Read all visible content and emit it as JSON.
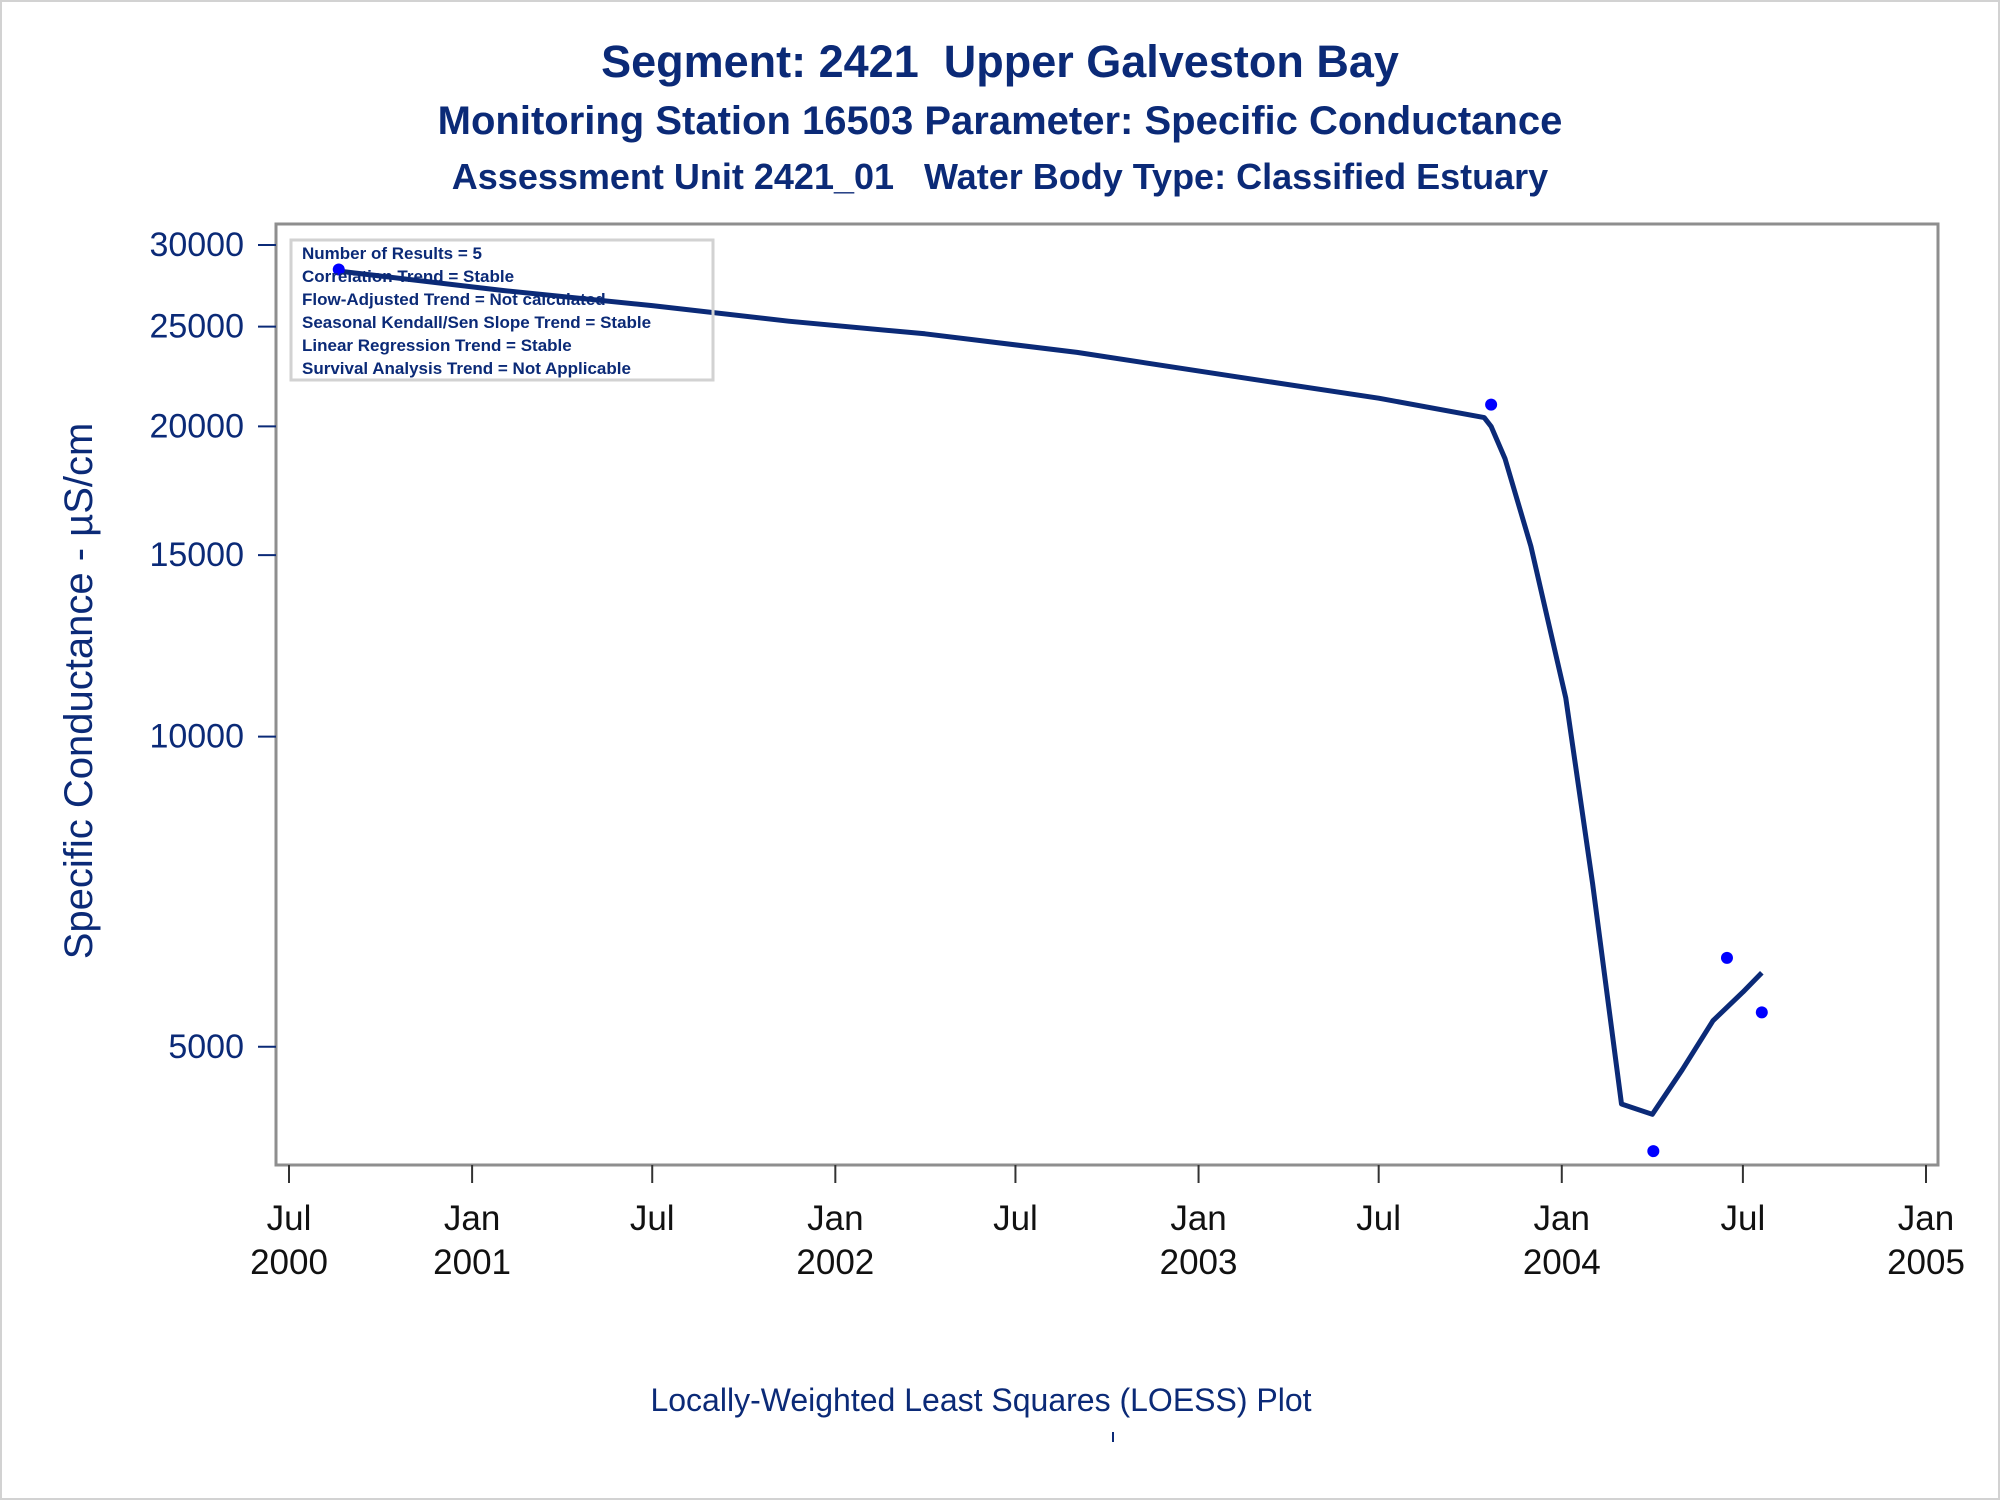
{
  "titles": {
    "line1": "Segment: 2421  Upper Galveston Bay",
    "line2": "Monitoring Station 16503 Parameter: Specific Conductance",
    "line3": "Assessment Unit 2421_01   Water Body Type: Classified Estuary"
  },
  "footnote": "Locally-Weighted Least Squares (LOESS) Plot",
  "stats_box": [
    "Number of Results = 5",
    "Correlation Trend = Stable",
    "Flow-Adjusted Trend = Not calculated",
    "Seasonal Kendall/Sen Slope Trend = Stable",
    "Linear Regression Trend = Stable",
    "Survival Analysis Trend = Not Applicable"
  ],
  "chart_data": {
    "type": "scatter",
    "ylabel": "Specific Conductance -  µS/cm",
    "y_scale": "log",
    "ylim": [
      3900,
      30200
    ],
    "yticks": [
      5000,
      10000,
      15000,
      20000,
      25000,
      30000
    ],
    "xlim": [
      "2000-06-15",
      "2005-01-15"
    ],
    "xticks": [
      {
        "date": "2000-07-01",
        "label": [
          "Jul",
          "2000"
        ]
      },
      {
        "date": "2001-01-01",
        "label": [
          "Jan",
          "2001"
        ]
      },
      {
        "date": "2001-07-01",
        "label": [
          "Jul",
          ""
        ]
      },
      {
        "date": "2002-01-01",
        "label": [
          "Jan",
          "2002"
        ]
      },
      {
        "date": "2002-07-01",
        "label": [
          "Jul",
          ""
        ]
      },
      {
        "date": "2003-01-01",
        "label": [
          "Jan",
          "2003"
        ]
      },
      {
        "date": "2003-07-01",
        "label": [
          "Jul",
          ""
        ]
      },
      {
        "date": "2004-01-01",
        "label": [
          "Jan",
          "2004"
        ]
      },
      {
        "date": "2004-07-01",
        "label": [
          "Jul",
          ""
        ]
      },
      {
        "date": "2005-01-01",
        "label": [
          "Jan",
          "2005"
        ]
      }
    ],
    "series": [
      {
        "kind": "points",
        "points": [
          {
            "x": "2000-08-20",
            "y": 28400
          },
          {
            "x": "2003-10-22",
            "y": 21000
          },
          {
            "x": "2004-04-02",
            "y": 3960
          },
          {
            "x": "2004-06-15",
            "y": 6100
          },
          {
            "x": "2004-07-20",
            "y": 5400
          }
        ]
      },
      {
        "kind": "loess",
        "points": [
          {
            "x": "2000-08-20",
            "y": 28300
          },
          {
            "x": "2001-02-01",
            "y": 27100
          },
          {
            "x": "2001-07-01",
            "y": 26200
          },
          {
            "x": "2001-11-15",
            "y": 25300
          },
          {
            "x": "2002-04-01",
            "y": 24600
          },
          {
            "x": "2002-09-01",
            "y": 23600
          },
          {
            "x": "2003-02-01",
            "y": 22400
          },
          {
            "x": "2003-07-01",
            "y": 21300
          },
          {
            "x": "2003-10-15",
            "y": 20400
          },
          {
            "x": "2003-10-22",
            "y": 20000
          },
          {
            "x": "2003-11-05",
            "y": 18600
          },
          {
            "x": "2003-12-01",
            "y": 15300
          },
          {
            "x": "2004-01-05",
            "y": 10900
          },
          {
            "x": "2004-02-01",
            "y": 7200
          },
          {
            "x": "2004-03-01",
            "y": 4400
          },
          {
            "x": "2004-04-01",
            "y": 4300
          },
          {
            "x": "2004-05-01",
            "y": 4750
          },
          {
            "x": "2004-06-01",
            "y": 5300
          },
          {
            "x": "2004-07-01",
            "y": 5650
          },
          {
            "x": "2004-07-20",
            "y": 5900
          }
        ]
      }
    ],
    "colors": {
      "text": "#0b2a77",
      "line": "#0b2a77",
      "points": "#0000ff",
      "axis": "#8e8e8e"
    }
  }
}
